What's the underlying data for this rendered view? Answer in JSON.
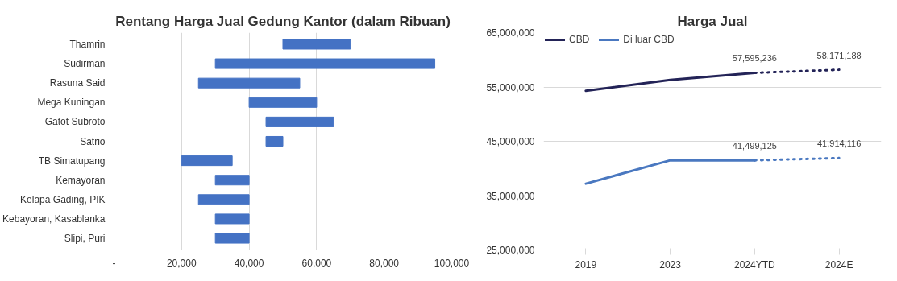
{
  "chart_data": [
    {
      "type": "bar",
      "orientation": "horizontal",
      "title": "Rentang Harga Jual Gedung Kantor (dalam Ribuan)",
      "categories": [
        "Thamrin",
        "Sudirman",
        "Rasuna Said",
        "Mega Kuningan",
        "Gatot Subroto",
        "Satrio",
        "TB Simatupang",
        "Kemayoran",
        "Kelapa Gading, PIK",
        "Kebayoran, Kasablanka",
        "Slipi, Puri"
      ],
      "base": [
        50000,
        30000,
        25000,
        40000,
        45000,
        45000,
        20000,
        30000,
        25000,
        30000,
        30000
      ],
      "values": [
        20000,
        65000,
        30000,
        20000,
        20000,
        5000,
        15000,
        10000,
        15000,
        10000,
        10000
      ],
      "color": "#4472c4",
      "xlim": [
        0,
        100000
      ],
      "xticks": [
        {
          "value": 0,
          "label": "-"
        },
        {
          "value": 20000,
          "label": "20,000"
        },
        {
          "value": 40000,
          "label": "40,000"
        },
        {
          "value": 60000,
          "label": "60,000"
        },
        {
          "value": 80000,
          "label": "80,000"
        },
        {
          "value": 100000,
          "label": "100,000"
        }
      ],
      "grid": "x"
    },
    {
      "type": "line",
      "title": "Harga Jual",
      "categories": [
        "2019",
        "2023",
        "2024YTD",
        "2024E"
      ],
      "series": [
        {
          "name": "CBD",
          "color": "#232357",
          "line_style": "solid",
          "values": [
            54300000,
            56300000,
            57595236,
            null
          ]
        },
        {
          "name": "Di luar CBD",
          "color": "#4a78c0",
          "line_style": "solid",
          "values": [
            37200000,
            41500000,
            41499125,
            null
          ]
        },
        {
          "color": "#232357",
          "line_style": "dotted",
          "values": [
            null,
            null,
            57595236,
            58171188
          ],
          "value_labels": [
            null,
            null,
            "57,595,236",
            "58,171,188"
          ]
        },
        {
          "color": "#4a78c0",
          "line_style": "dotted",
          "values": [
            null,
            null,
            41499125,
            41914116
          ],
          "value_labels": [
            null,
            null,
            "41,499,125",
            "41,914,116"
          ]
        }
      ],
      "ylim": [
        25000000,
        65000000
      ],
      "yticks": [
        {
          "value": 25000000,
          "label": "25,000,000"
        },
        {
          "value": 35000000,
          "label": "35,000,000"
        },
        {
          "value": 45000000,
          "label": "45,000,000"
        },
        {
          "value": 55000000,
          "label": "55,000,000"
        },
        {
          "value": 65000000,
          "label": "65,000,000"
        }
      ],
      "grid": "y",
      "legend": "top left",
      "marker": "none"
    }
  ]
}
